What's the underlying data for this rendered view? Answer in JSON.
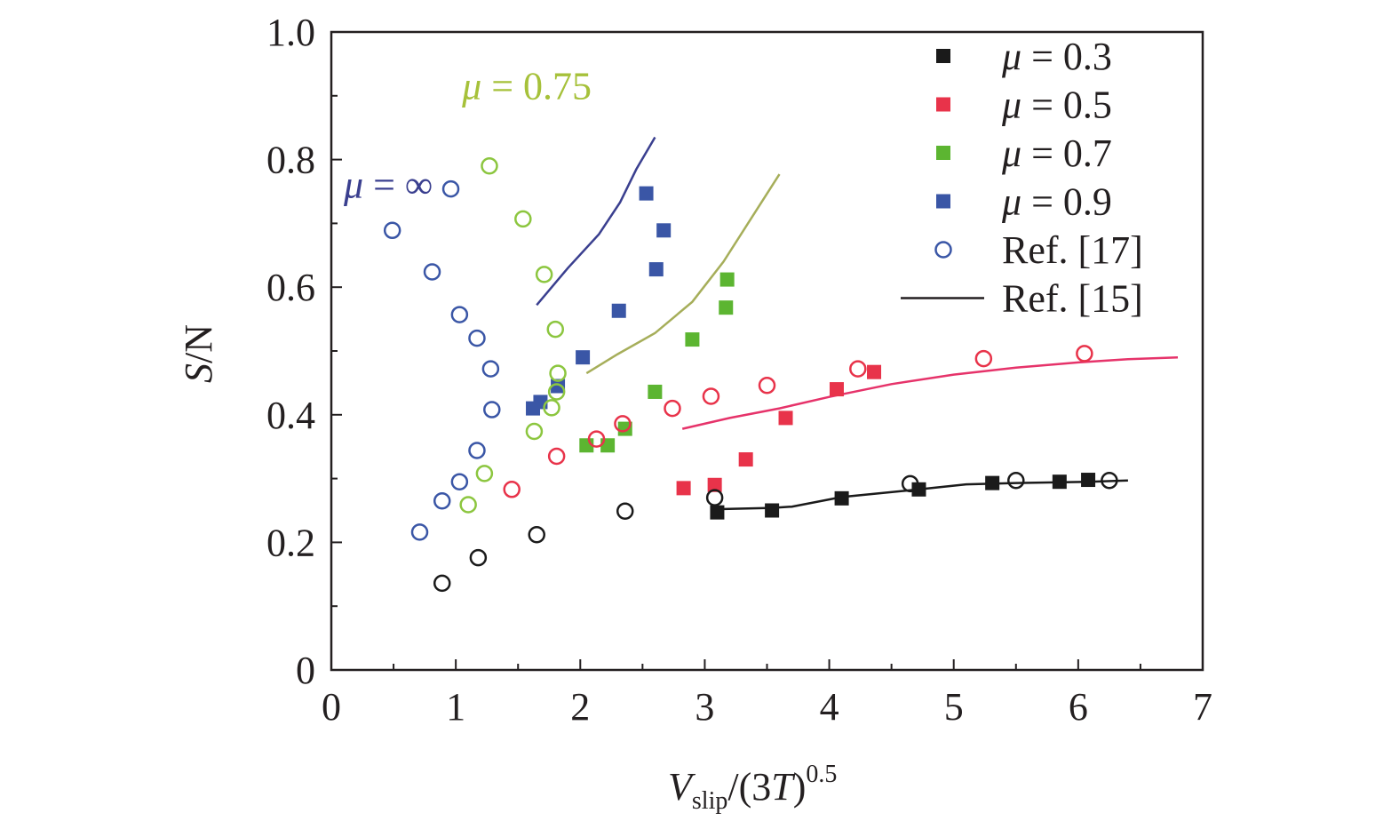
{
  "chart_data": {
    "type": "scatter",
    "xlabel": {
      "main": "V",
      "sub": "slip",
      "mid": "/(3",
      "var": "T",
      "close": ")",
      "sup": "0.5"
    },
    "ylabel": {
      "var": "S",
      "rest": "/N"
    },
    "xlim": [
      0,
      7
    ],
    "ylim": [
      0,
      1.0
    ],
    "xticks": [
      "0",
      "1",
      "2",
      "3",
      "4",
      "5",
      "6",
      "7"
    ],
    "yticks": [
      "0",
      "0.2",
      "0.4",
      "0.6",
      "0.8",
      "1.0"
    ],
    "grid": false,
    "legend_position": "top-right",
    "legend": [
      {
        "symbol": "square-filled",
        "color": "#1a1a1a",
        "prefix": "μ",
        "text": " = 0.3"
      },
      {
        "symbol": "square-filled",
        "color": "#e8334a",
        "prefix": "μ",
        "text": " = 0.5"
      },
      {
        "symbol": "square-filled",
        "color": "#5cb531",
        "prefix": "μ",
        "text": " = 0.7"
      },
      {
        "symbol": "square-filled",
        "color": "#3a56a6",
        "prefix": "μ",
        "text": " = 0.9"
      },
      {
        "symbol": "circle-open",
        "color": "#3a56a6",
        "prefix": "",
        "text": "Ref. [17]"
      },
      {
        "symbol": "line",
        "color": "#231f20",
        "prefix": "",
        "text": "Ref. [15]"
      }
    ],
    "annotations": [
      {
        "prefix": "μ",
        "text": " = 0.75",
        "color": "#a6c13a",
        "x": 1.05,
        "y": 0.895
      },
      {
        "prefix": "μ",
        "text": " = ∞",
        "color": "#3a3f8f",
        "x": 0.1,
        "y": 0.74
      }
    ],
    "series": [
      {
        "name": "μ = 0.3",
        "color": "#1a1a1a",
        "marker": "square",
        "points": [
          [
            3.1,
            0.247
          ],
          [
            3.54,
            0.25
          ],
          [
            4.1,
            0.269
          ],
          [
            4.72,
            0.283
          ],
          [
            5.31,
            0.293
          ],
          [
            5.85,
            0.295
          ],
          [
            6.08,
            0.298
          ]
        ]
      },
      {
        "name": "μ = 0.5",
        "color": "#e8334a",
        "marker": "square",
        "points": [
          [
            2.83,
            0.285
          ],
          [
            3.08,
            0.29
          ],
          [
            3.33,
            0.33
          ],
          [
            3.65,
            0.395
          ],
          [
            4.06,
            0.44
          ],
          [
            4.36,
            0.467
          ]
        ]
      },
      {
        "name": "μ = 0.7",
        "color": "#5cb531",
        "marker": "square",
        "points": [
          [
            2.05,
            0.352
          ],
          [
            2.22,
            0.352
          ],
          [
            2.36,
            0.378
          ],
          [
            2.6,
            0.436
          ],
          [
            2.9,
            0.518
          ],
          [
            3.17,
            0.568
          ],
          [
            3.18,
            0.612
          ]
        ]
      },
      {
        "name": "μ = 0.9",
        "color": "#3a56a6",
        "marker": "square",
        "points": [
          [
            1.62,
            0.41
          ],
          [
            1.68,
            0.42
          ],
          [
            1.82,
            0.445
          ],
          [
            2.02,
            0.49
          ],
          [
            2.31,
            0.563
          ],
          [
            2.53,
            0.747
          ],
          [
            2.61,
            0.628
          ],
          [
            2.67,
            0.689
          ]
        ]
      },
      {
        "name": "",
        "color": "#1a1a1a",
        "marker": "circle-open",
        "points": [
          [
            0.89,
            0.136
          ],
          [
            1.18,
            0.176
          ],
          [
            1.65,
            0.212
          ],
          [
            2.36,
            0.249
          ],
          [
            3.08,
            0.27
          ],
          [
            4.65,
            0.292
          ],
          [
            5.5,
            0.297
          ],
          [
            6.25,
            0.297
          ]
        ]
      },
      {
        "name": "",
        "color": "#e8334a",
        "marker": "circle-open",
        "points": [
          [
            1.45,
            0.283
          ],
          [
            1.81,
            0.335
          ],
          [
            2.13,
            0.362
          ],
          [
            2.34,
            0.386
          ],
          [
            2.74,
            0.41
          ],
          [
            3.05,
            0.429
          ],
          [
            3.5,
            0.446
          ],
          [
            4.23,
            0.472
          ],
          [
            5.24,
            0.488
          ],
          [
            6.05,
            0.496
          ]
        ]
      },
      {
        "name": "",
        "color": "#8cc63f",
        "marker": "circle-open",
        "points": [
          [
            1.1,
            0.259
          ],
          [
            1.23,
            0.308
          ],
          [
            1.63,
            0.374
          ],
          [
            1.77,
            0.411
          ],
          [
            1.81,
            0.436
          ],
          [
            1.82,
            0.465
          ],
          [
            1.8,
            0.534
          ],
          [
            1.71,
            0.62
          ],
          [
            1.54,
            0.707
          ],
          [
            1.27,
            0.79
          ]
        ]
      },
      {
        "name": "",
        "color": "#3a56a6",
        "marker": "circle-open",
        "points": [
          [
            0.71,
            0.216
          ],
          [
            0.89,
            0.265
          ],
          [
            1.03,
            0.295
          ],
          [
            1.17,
            0.344
          ],
          [
            1.29,
            0.408
          ],
          [
            1.28,
            0.472
          ],
          [
            1.17,
            0.52
          ],
          [
            1.03,
            0.557
          ],
          [
            0.81,
            0.624
          ],
          [
            0.49,
            0.689
          ],
          [
            0.96,
            0.754
          ]
        ]
      },
      {
        "name": "",
        "color": "#1a1a1a",
        "marker": "line",
        "points": [
          [
            3.08,
            0.252
          ],
          [
            3.54,
            0.254
          ],
          [
            3.7,
            0.256
          ],
          [
            4.1,
            0.271
          ],
          [
            4.72,
            0.283
          ],
          [
            5.1,
            0.291
          ],
          [
            5.5,
            0.293
          ],
          [
            6.08,
            0.295
          ],
          [
            6.4,
            0.297
          ]
        ]
      },
      {
        "name": "",
        "color": "#e6336a",
        "marker": "line",
        "points": [
          [
            2.82,
            0.378
          ],
          [
            3.2,
            0.395
          ],
          [
            3.6,
            0.41
          ],
          [
            4.0,
            0.428
          ],
          [
            4.5,
            0.448
          ],
          [
            5.0,
            0.463
          ],
          [
            5.5,
            0.474
          ],
          [
            6.0,
            0.482
          ],
          [
            6.4,
            0.487
          ],
          [
            6.8,
            0.49
          ]
        ]
      },
      {
        "name": "",
        "color": "#a6ae5a",
        "marker": "line",
        "points": [
          [
            2.05,
            0.465
          ],
          [
            2.3,
            0.495
          ],
          [
            2.6,
            0.528
          ],
          [
            2.9,
            0.577
          ],
          [
            3.15,
            0.64
          ],
          [
            3.38,
            0.71
          ],
          [
            3.6,
            0.777
          ]
        ]
      },
      {
        "name": "",
        "color": "#3a3f8f",
        "marker": "line",
        "points": [
          [
            1.65,
            0.572
          ],
          [
            1.9,
            0.63
          ],
          [
            2.15,
            0.683
          ],
          [
            2.32,
            0.733
          ],
          [
            2.45,
            0.785
          ],
          [
            2.6,
            0.835
          ]
        ]
      }
    ]
  }
}
